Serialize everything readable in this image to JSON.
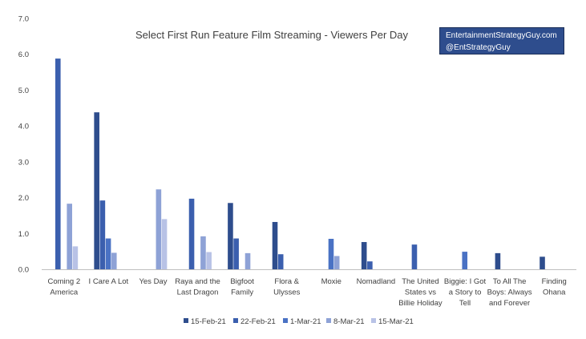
{
  "chart_data": {
    "type": "bar",
    "title": "Select First Run Feature Film Streaming - Viewers Per Day",
    "xlabel": "",
    "ylabel": "",
    "ylim": [
      0,
      7
    ],
    "yticks": [
      "0.0",
      "1.0",
      "2.0",
      "3.0",
      "4.0",
      "5.0",
      "6.0",
      "7.0"
    ],
    "grid": false,
    "legend_position": "bottom",
    "categories": [
      [
        "Coming 2",
        "America"
      ],
      [
        "I Care A Lot"
      ],
      [
        "Yes Day"
      ],
      [
        "Raya and the",
        "Last Dragon"
      ],
      [
        "Bigfoot",
        "Family"
      ],
      [
        "Flora &",
        "Ulysses"
      ],
      [
        "Moxie"
      ],
      [
        "Nomadland"
      ],
      [
        "The United",
        "States vs",
        "Billie Holiday"
      ],
      [
        "Biggie: I Got",
        "a Story to",
        "Tell"
      ],
      [
        "To All The",
        "Boys: Always",
        "and Forever"
      ],
      [
        "Finding",
        "Ohana"
      ]
    ],
    "series": [
      {
        "name": "15-Feb-21",
        "color": "#2e4d8d",
        "values": [
          null,
          4.38,
          null,
          null,
          1.85,
          1.32,
          null,
          0.76,
          null,
          null,
          0.45,
          0.35
        ]
      },
      {
        "name": "22-Feb-21",
        "color": "#3b5fae",
        "values": [
          5.88,
          1.92,
          null,
          1.97,
          0.86,
          0.42,
          null,
          0.22,
          0.69,
          null,
          null,
          null
        ]
      },
      {
        "name": "1-Mar-21",
        "color": "#4a72c4",
        "values": [
          null,
          0.86,
          null,
          null,
          null,
          null,
          0.85,
          null,
          null,
          0.49,
          null,
          null
        ]
      },
      {
        "name": "8-Mar-21",
        "color": "#8ea2d6",
        "values": [
          1.83,
          0.46,
          2.23,
          0.92,
          0.45,
          null,
          0.37,
          null,
          null,
          null,
          null,
          null
        ]
      },
      {
        "name": "15-Mar-21",
        "color": "#b8c2e6",
        "values": [
          0.64,
          null,
          1.4,
          0.48,
          null,
          null,
          null,
          null,
          null,
          null,
          null,
          null
        ]
      }
    ]
  },
  "source_box": {
    "line1": "EntertainmentStrategyGuy.com",
    "line2": "@EntStrategyGuy"
  }
}
